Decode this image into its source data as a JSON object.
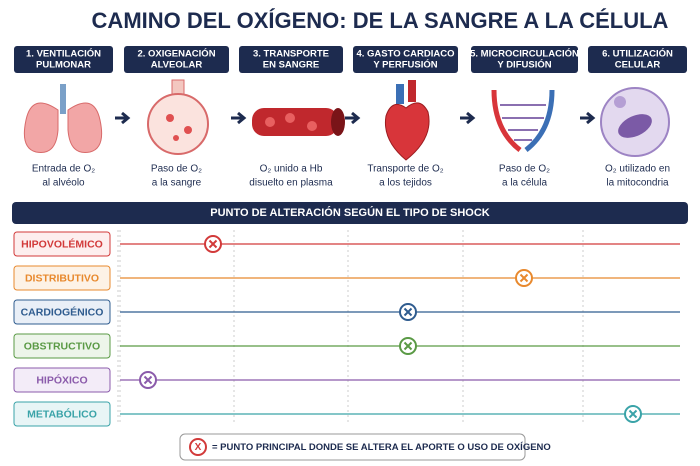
{
  "title": "CAMINO DEL OXÍGENO: DE LA SANGRE A LA CÉLULA",
  "steps": [
    {
      "header": [
        "1. VENTILACIÓN",
        "PULMONAR"
      ],
      "caption": [
        "Entrada de O₂",
        "al alvéolo"
      ]
    },
    {
      "header": [
        "2. OXIGENACIÓN",
        "ALVEOLAR"
      ],
      "caption": [
        "Paso de O₂",
        "a la sangre"
      ]
    },
    {
      "header": [
        "3. TRANSPORTE",
        "EN SANGRE"
      ],
      "caption": [
        "O₂ unido a Hb",
        "disuelto en plasma"
      ]
    },
    {
      "header": [
        "4. GASTO CARDIACO",
        "Y PERFUSIÓN"
      ],
      "caption": [
        "Transporte de O₂",
        "a los tejidos"
      ]
    },
    {
      "header": [
        "5. MICROCIRCULACIÓN",
        "Y DIFUSIÓN"
      ],
      "caption": [
        "Paso de O₂",
        "a la célula"
      ]
    },
    {
      "header": [
        "6. UTILIZACIÓN",
        "CELULAR"
      ],
      "caption": [
        "O₂ utilizado en",
        "la mitocondria"
      ]
    }
  ],
  "banner": "PUNTO DE ALTERACIÓN SEGÚN EL TIPO DE SHOCK",
  "shock_types": [
    "HIPOVOLÉMICO",
    "DISTRIBUTIVO",
    "CARDIOGÉNICO",
    "OBSTRUCTIVO",
    "HIPÓXICO",
    "METABÓLICO"
  ],
  "legend": {
    "symbol": "X",
    "text": "= PUNTO PRINCIPAL DONDE SE ALTERA EL APORTE O USO DE OXÍGENO"
  }
}
